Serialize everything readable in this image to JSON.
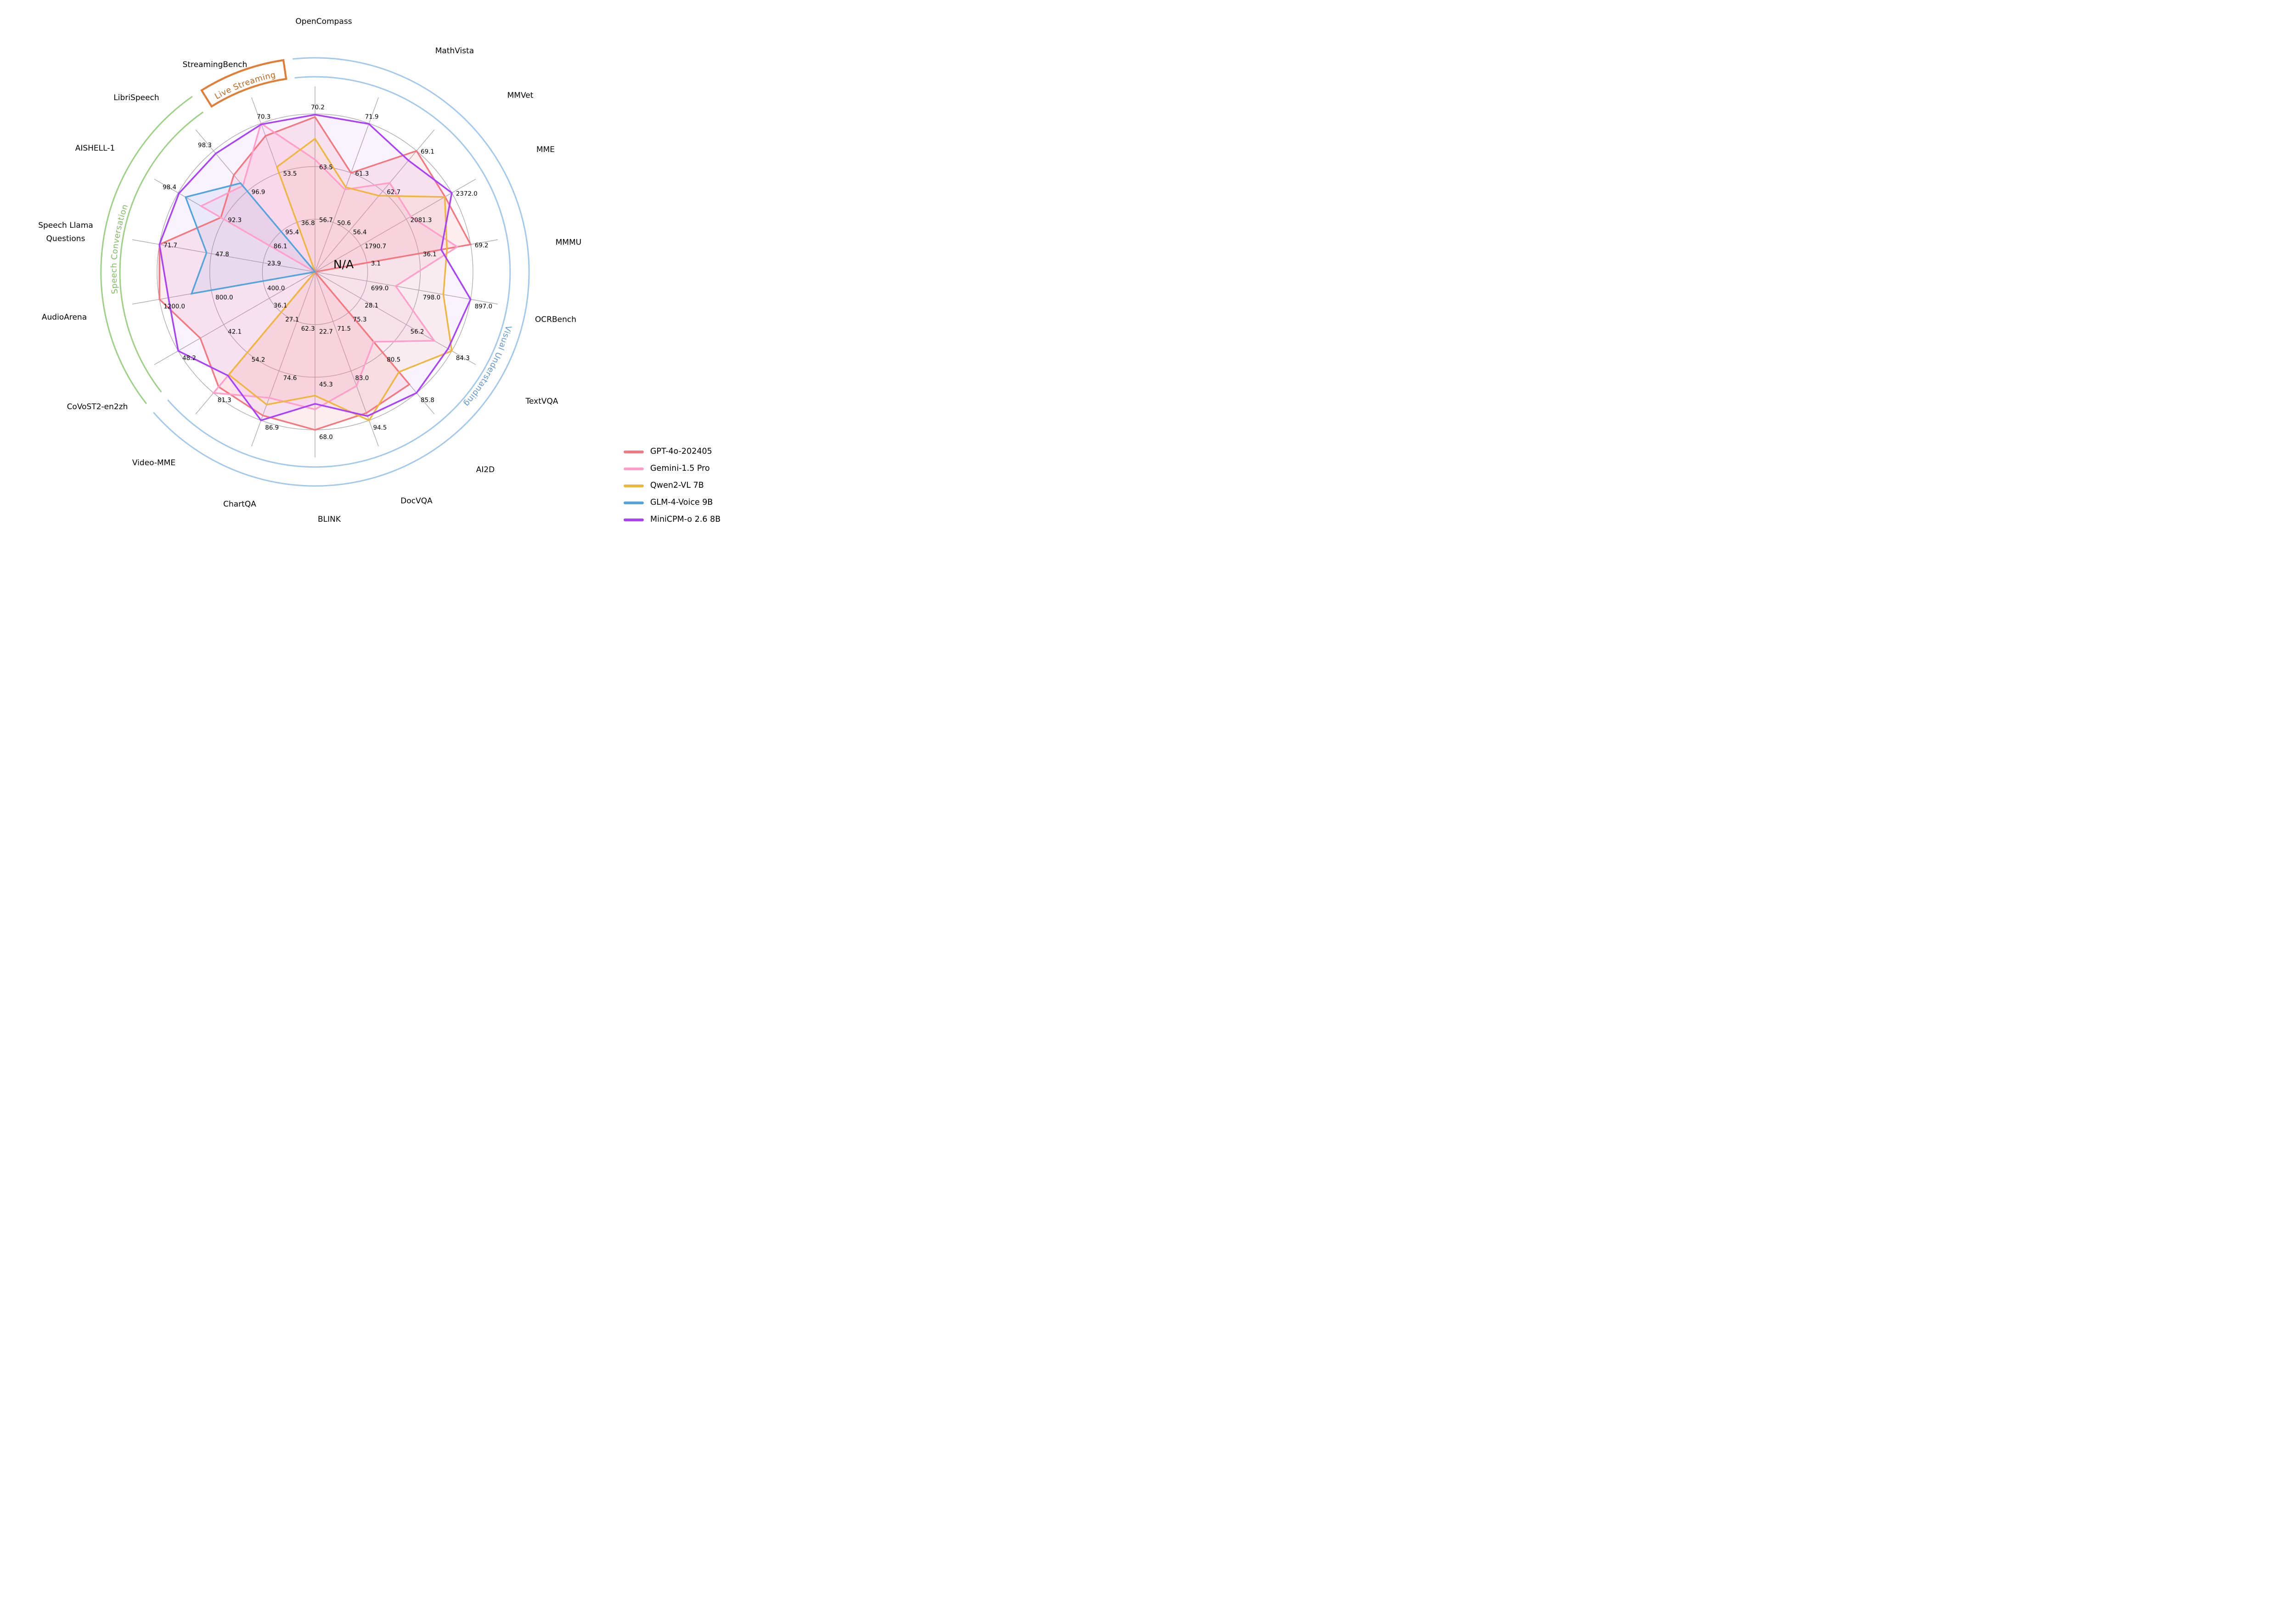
{
  "figure": {
    "center_note": "N/A",
    "grid_color": "#ACA4AC",
    "background": "#ffffff"
  },
  "legend": {
    "items": [
      {
        "label": "GPT-4o-202405",
        "color": "#F4777F"
      },
      {
        "label": "Gemini-1.5 Pro",
        "color": "#FF9FC9"
      },
      {
        "label": "Qwen2-VL 7B",
        "color": "#EFB63E"
      },
      {
        "label": "GLM-4-Voice 9B",
        "color": "#54A4DB"
      },
      {
        "label": "MiniCPM-o 2.6 8B",
        "color": "#A940FA"
      }
    ]
  },
  "category_arcs": [
    {
      "label": "Live Streaming",
      "color": "#E07E38",
      "text_color": "#C2661F",
      "start_deg": 328,
      "end_deg": 351.5,
      "style": "banner"
    },
    {
      "label": "Speech Conversation",
      "color": "#9CD084",
      "text_color": "#7DBD62",
      "start_deg": 232,
      "end_deg": 325,
      "style": "double"
    },
    {
      "label": "Visual Understanding",
      "color": "#A2C8EC",
      "text_color": "#5E97D3",
      "start_deg": 354,
      "end_deg": 589,
      "style": "double"
    }
  ],
  "chart_data": {
    "type": "radar",
    "title": "",
    "ring_fractions": [
      0.3333,
      0.6667,
      1.0
    ],
    "axes": [
      {
        "name": "OpenCompass",
        "category": "visual",
        "rings": [
          56.7,
          63.5,
          70.2
        ]
      },
      {
        "name": "MathVista",
        "category": "visual",
        "rings": [
          50.6,
          61.3,
          71.9
        ]
      },
      {
        "name": "MMVet",
        "category": "visual",
        "rings": [
          56.4,
          62.7,
          69.1
        ]
      },
      {
        "name": "MME",
        "category": "visual",
        "rings": [
          1790.7,
          2081.3,
          2372.0
        ]
      },
      {
        "name": "MMMU",
        "category": "visual",
        "rings": [
          3.1,
          36.1,
          69.2
        ]
      },
      {
        "name": "OCRBench",
        "category": "visual",
        "rings": [
          699.0,
          798.0,
          897.0
        ]
      },
      {
        "name": "TextVQA",
        "category": "visual",
        "rings": [
          28.1,
          56.2,
          84.3
        ]
      },
      {
        "name": "AI2D",
        "category": "visual",
        "rings": [
          75.3,
          80.5,
          85.8
        ]
      },
      {
        "name": "DocVQA",
        "category": "visual",
        "rings": [
          71.5,
          83.0,
          94.5
        ]
      },
      {
        "name": "BLINK",
        "category": "visual",
        "rings": [
          22.7,
          45.3,
          68.0
        ]
      },
      {
        "name": "ChartQA",
        "category": "visual",
        "rings": [
          62.3,
          74.6,
          86.9
        ]
      },
      {
        "name": "Video-MME",
        "category": "visual",
        "rings": [
          27.1,
          54.2,
          81.3
        ]
      },
      {
        "name": "CoVoST2-en2zh",
        "category": "speech",
        "rings": [
          36.1,
          42.1,
          48.2
        ]
      },
      {
        "name": "AudioArena",
        "category": "speech",
        "rings": [
          400.0,
          800.0,
          1200.0
        ]
      },
      {
        "name": "Speech Llama\nQuestions",
        "category": "speech",
        "rings": [
          23.9,
          47.8,
          71.7
        ]
      },
      {
        "name": "AISHELL-1",
        "category": "speech",
        "rings": [
          86.1,
          92.3,
          98.4
        ]
      },
      {
        "name": "LibriSpeech",
        "category": "speech",
        "rings": [
          95.4,
          96.9,
          98.3
        ]
      },
      {
        "name": "StreamingBench",
        "category": "streaming",
        "rings": [
          36.8,
          53.5,
          70.3
        ]
      }
    ],
    "series": [
      {
        "name": "GPT-4o-202405",
        "color": "#F4777F",
        "fill_opacity": 0.13,
        "values": [
          69.9,
          61.3,
          69.1,
          2328.7,
          69.2,
          null,
          null,
          84.6,
          92.8,
          68.0,
          85.7,
          77.2,
          45.2,
          1200.0,
          71.7,
          92.7,
          97.5,
          66.0
        ]
      },
      {
        "name": "Gemini-1.5 Pro",
        "color": "#FF9FC9",
        "fill_opacity": 0.13,
        "values": [
          64.4,
          57.7,
          64.0,
          2110.6,
          60.6,
          754.0,
          73.5,
          79.1,
          86.5,
          59.1,
          81.3,
          81.3,
          null,
          null,
          null,
          95.4,
          97.1,
          70.3
        ]
      },
      {
        "name": "Qwen2-VL 7B",
        "color": "#EFB63E",
        "fill_opacity": 0.08,
        "values": [
          67.1,
          58.2,
          62.0,
          2326.8,
          54.1,
          845.0,
          84.3,
          83.0,
          94.5,
          53.2,
          83.0,
          69.0,
          null,
          null,
          null,
          null,
          null,
          55.5
        ]
      },
      {
        "name": "GLM-4-Voice 9B",
        "color": "#54A4DB",
        "fill_opacity": 0.1,
        "values": [
          null,
          null,
          null,
          null,
          null,
          null,
          null,
          null,
          null,
          null,
          null,
          null,
          null,
          952.0,
          50.0,
          97.5,
          97.2,
          null
        ]
      },
      {
        "name": "MiniCPM-o 2.6 8B",
        "color": "#A940FA",
        "fill_opacity": 0.07,
        "values": [
          70.2,
          71.9,
          67.5,
          2372.0,
          50.4,
          897.0,
          82.0,
          85.8,
          93.5,
          56.7,
          86.9,
          69.7,
          48.2,
          1131.0,
          71.7,
          98.4,
          98.3,
          69.9
        ]
      }
    ]
  }
}
